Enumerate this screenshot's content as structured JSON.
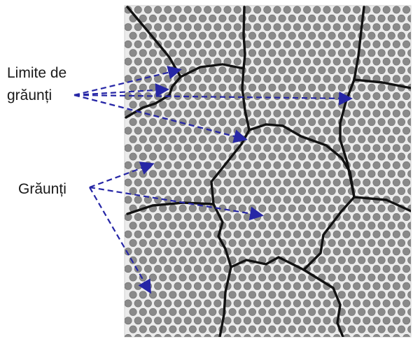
{
  "labels": {
    "grain_boundaries_line1": "Limite de",
    "grain_boundaries_line2": "grăunți",
    "grains": "Grăunți"
  },
  "colors": {
    "background": "#ffffff",
    "panel": "#ebebeb",
    "atom": "#8a8a8a",
    "atom_outline": "#6f6f6f",
    "boundary": "#111111",
    "arrow": "#2626a6"
  }
}
